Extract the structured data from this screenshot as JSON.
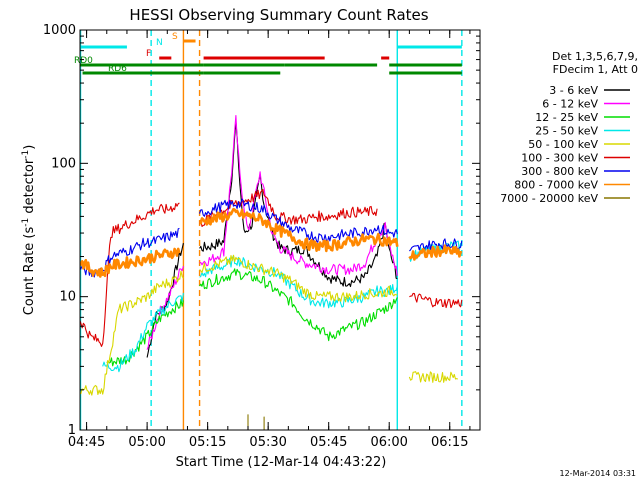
{
  "chart_data": {
    "type": "line",
    "title": "HESSI Observing Summary Count Rates",
    "xlabel": "Start Time (12-Mar-14 04:43:22)",
    "ylabel": "Count Rate (s⁻¹ detector⁻¹)",
    "ylabel_parts": [
      "Count Rate (s",
      "-1",
      " detector",
      "-1",
      ")"
    ],
    "yscale": "log",
    "ylim": [
      1,
      1000
    ],
    "xlim": [
      "04:43:22",
      "06:22:30"
    ],
    "x_tick_labels": [
      "04:45",
      "05:00",
      "05:15",
      "05:30",
      "05:45",
      "06:00",
      "06:15"
    ],
    "y_tick_labels": [
      "1",
      "10",
      "100",
      "1000"
    ],
    "legend_placement": "right",
    "legend_header": [
      "Det 1,3,5,6,7,9,",
      "FDecim 1, Att 0"
    ],
    "timestamp": "12-Mar-2014 03:31",
    "series": [
      {
        "name": "3 - 6 keV",
        "color": "#000000",
        "points": [
          [
            "05:00",
            3.5
          ],
          [
            "05:02",
            7
          ],
          [
            "05:05",
            9
          ],
          [
            "05:08",
            20
          ],
          [
            "05:09",
            25
          ],
          [
            "05:13",
            23
          ],
          [
            "05:16",
            24
          ],
          [
            "05:19",
            26
          ],
          [
            "05:21",
            80
          ],
          [
            "05:22",
            200
          ],
          [
            "05:23",
            70
          ],
          [
            "05:24",
            30
          ],
          [
            "05:26",
            35
          ],
          [
            "05:28",
            80
          ],
          [
            "05:29",
            50
          ],
          [
            "05:31",
            30
          ],
          [
            "05:33",
            23
          ],
          [
            "05:36",
            22
          ],
          [
            "05:39",
            23
          ],
          [
            "05:42",
            18
          ],
          [
            "05:45",
            14
          ],
          [
            "05:48",
            13
          ],
          [
            "05:51",
            13
          ],
          [
            "05:54",
            14
          ],
          [
            "05:57",
            20
          ],
          [
            "05:59",
            35
          ],
          [
            "06:00",
            22
          ],
          [
            "06:02",
            14
          ]
        ]
      },
      {
        "name": "6 - 12 keV",
        "color": "#ff00ff",
        "points": [
          [
            "05:00",
            4
          ],
          [
            "05:03",
            7.5
          ],
          [
            "05:06",
            11
          ],
          [
            "05:08",
            15
          ],
          [
            "05:09",
            18
          ],
          [
            "05:13",
            18
          ],
          [
            "05:16",
            19
          ],
          [
            "05:19",
            22
          ],
          [
            "05:21",
            90
          ],
          [
            "05:22",
            210
          ],
          [
            "05:23",
            80
          ],
          [
            "05:25",
            30
          ],
          [
            "05:27",
            60
          ],
          [
            "05:28",
            85
          ],
          [
            "05:29",
            60
          ],
          [
            "05:31",
            30
          ],
          [
            "05:33",
            23
          ],
          [
            "05:36",
            20
          ],
          [
            "05:39",
            18
          ],
          [
            "05:42",
            17
          ],
          [
            "05:45",
            16
          ],
          [
            "05:48",
            16
          ],
          [
            "05:51",
            16
          ],
          [
            "05:54",
            18
          ],
          [
            "05:57",
            28
          ],
          [
            "05:59",
            34
          ],
          [
            "06:00",
            24
          ],
          [
            "06:02",
            15
          ]
        ]
      },
      {
        "name": "12 - 25 keV",
        "color": "#00dd00",
        "points": [
          [
            "04:50",
            3.2
          ],
          [
            "04:55",
            3.4
          ],
          [
            "05:00",
            5
          ],
          [
            "05:03",
            6.8
          ],
          [
            "05:06",
            8
          ],
          [
            "05:09",
            9
          ],
          [
            "05:13",
            12
          ],
          [
            "05:16",
            13
          ],
          [
            "05:19",
            14
          ],
          [
            "05:22",
            15
          ],
          [
            "05:26",
            14
          ],
          [
            "05:29",
            13
          ],
          [
            "05:32",
            11
          ],
          [
            "05:36",
            9
          ],
          [
            "05:39",
            7
          ],
          [
            "05:42",
            6
          ],
          [
            "05:45",
            5
          ],
          [
            "05:48",
            5.5
          ],
          [
            "05:51",
            6
          ],
          [
            "05:54",
            6.5
          ],
          [
            "05:57",
            7.5
          ],
          [
            "06:00",
            8.5
          ],
          [
            "06:02",
            10
          ]
        ]
      },
      {
        "name": "25 - 50 keV",
        "color": "#00e8e8",
        "points": [
          [
            "04:49",
            3
          ],
          [
            "04:53",
            3
          ],
          [
            "04:57",
            4
          ],
          [
            "05:00",
            6
          ],
          [
            "05:03",
            7.5
          ],
          [
            "05:06",
            9
          ],
          [
            "05:09",
            10
          ],
          [
            "05:13",
            14
          ],
          [
            "05:16",
            16
          ],
          [
            "05:19",
            17
          ],
          [
            "05:22",
            19
          ],
          [
            "05:26",
            17
          ],
          [
            "05:29",
            16
          ],
          [
            "05:32",
            15
          ],
          [
            "05:36",
            12
          ],
          [
            "05:39",
            10
          ],
          [
            "05:42",
            9
          ],
          [
            "05:45",
            9
          ],
          [
            "05:48",
            9
          ],
          [
            "05:51",
            9.5
          ],
          [
            "05:54",
            10
          ],
          [
            "05:57",
            11
          ],
          [
            "06:00",
            11
          ],
          [
            "06:02",
            12
          ],
          [
            "06:05",
            20
          ],
          [
            "06:09",
            22
          ],
          [
            "06:12",
            23
          ],
          [
            "06:15",
            24
          ],
          [
            "06:18",
            24
          ]
        ]
      },
      {
        "name": "50 - 100 keV",
        "color": "#d8d800",
        "points": [
          [
            "04:43",
            2
          ],
          [
            "04:46",
            2
          ],
          [
            "04:49",
            2
          ],
          [
            "04:53",
            8
          ],
          [
            "04:57",
            9
          ],
          [
            "05:00",
            10
          ],
          [
            "05:03",
            12
          ],
          [
            "05:06",
            13
          ],
          [
            "05:09",
            15
          ],
          [
            "05:13",
            16
          ],
          [
            "05:16",
            17
          ],
          [
            "05:19",
            18
          ],
          [
            "05:22",
            19
          ],
          [
            "05:26",
            17
          ],
          [
            "05:29",
            16
          ],
          [
            "05:32",
            15
          ],
          [
            "05:36",
            13
          ],
          [
            "05:39",
            11
          ],
          [
            "05:42",
            10
          ],
          [
            "05:45",
            10
          ],
          [
            "05:48",
            10
          ],
          [
            "05:51",
            10
          ],
          [
            "05:54",
            10.5
          ],
          [
            "05:57",
            10.5
          ],
          [
            "06:00",
            11
          ],
          [
            "06:02",
            11
          ],
          [
            "06:05",
            2.5
          ],
          [
            "06:09",
            2.5
          ],
          [
            "06:12",
            2.5
          ],
          [
            "06:15",
            2.5
          ],
          [
            "06:17",
            2.5
          ]
        ]
      },
      {
        "name": "100 - 300 keV",
        "color": "#dd0000",
        "points": [
          [
            "04:43",
            7
          ],
          [
            "04:46",
            5
          ],
          [
            "04:49",
            4.5
          ],
          [
            "04:51",
            30
          ],
          [
            "04:55",
            35
          ],
          [
            "04:59",
            40
          ],
          [
            "05:02",
            45
          ],
          [
            "05:05",
            45
          ],
          [
            "05:08",
            50
          ],
          [
            "05:13",
            35
          ],
          [
            "05:16",
            40
          ],
          [
            "05:19",
            45
          ],
          [
            "05:22",
            50
          ],
          [
            "05:26",
            55
          ],
          [
            "05:29",
            60
          ],
          [
            "05:32",
            40
          ],
          [
            "05:36",
            38
          ],
          [
            "05:39",
            38
          ],
          [
            "05:42",
            40
          ],
          [
            "05:45",
            40
          ],
          [
            "05:48",
            42
          ],
          [
            "05:51",
            43
          ],
          [
            "05:54",
            43
          ],
          [
            "05:57",
            44
          ],
          [
            "06:05",
            10
          ],
          [
            "06:09",
            9.5
          ],
          [
            "06:12",
            9
          ],
          [
            "06:15",
            9
          ],
          [
            "06:18",
            9
          ]
        ]
      },
      {
        "name": "300 - 800 keV",
        "color": "#0000ee",
        "points": [
          [
            "04:43",
            17
          ],
          [
            "04:46",
            15
          ],
          [
            "04:49",
            16
          ],
          [
            "04:51",
            20
          ],
          [
            "04:55",
            22
          ],
          [
            "04:59",
            25
          ],
          [
            "05:02",
            26
          ],
          [
            "05:05",
            28
          ],
          [
            "05:08",
            30
          ],
          [
            "05:13",
            42
          ],
          [
            "05:16",
            45
          ],
          [
            "05:19",
            48
          ],
          [
            "05:22",
            50
          ],
          [
            "05:26",
            48
          ],
          [
            "05:29",
            45
          ],
          [
            "05:32",
            38
          ],
          [
            "05:36",
            32
          ],
          [
            "05:39",
            30
          ],
          [
            "05:42",
            28
          ],
          [
            "05:45",
            28
          ],
          [
            "05:48",
            29
          ],
          [
            "05:51",
            30
          ],
          [
            "05:54",
            31
          ],
          [
            "05:57",
            33
          ],
          [
            "06:00",
            30
          ],
          [
            "06:02",
            30
          ],
          [
            "06:05",
            22
          ],
          [
            "06:09",
            24
          ],
          [
            "06:12",
            25
          ],
          [
            "06:15",
            25
          ],
          [
            "06:18",
            25
          ]
        ]
      },
      {
        "name": "800 - 7000 keV",
        "color": "#ff8800",
        "points": [
          [
            "04:43",
            19
          ],
          [
            "04:46",
            16
          ],
          [
            "04:49",
            15
          ],
          [
            "04:51",
            17
          ],
          [
            "04:55",
            18
          ],
          [
            "04:59",
            19
          ],
          [
            "05:02",
            20
          ],
          [
            "05:05",
            21
          ],
          [
            "05:08",
            22
          ],
          [
            "05:13",
            36
          ],
          [
            "05:16",
            38
          ],
          [
            "05:19",
            40
          ],
          [
            "05:22",
            42
          ],
          [
            "05:26",
            40
          ],
          [
            "05:29",
            37
          ],
          [
            "05:32",
            32
          ],
          [
            "05:36",
            28
          ],
          [
            "05:39",
            25
          ],
          [
            "05:42",
            24
          ],
          [
            "05:45",
            24
          ],
          [
            "05:48",
            25
          ],
          [
            "05:51",
            26
          ],
          [
            "05:54",
            27
          ],
          [
            "05:57",
            27
          ],
          [
            "06:00",
            26
          ],
          [
            "06:02",
            25
          ],
          [
            "06:05",
            20
          ],
          [
            "06:09",
            21
          ],
          [
            "06:12",
            22
          ],
          [
            "06:15",
            22
          ],
          [
            "06:18",
            21
          ]
        ]
      },
      {
        "name": "7000 - 20000 keV",
        "color": "#887700",
        "points": [
          [
            "04:43",
            1
          ],
          [
            "05:25",
            1
          ],
          [
            "05:25",
            1.3
          ],
          [
            "05:25",
            1
          ],
          [
            "05:29",
            1
          ],
          [
            "05:29",
            1.25
          ],
          [
            "05:29",
            1
          ],
          [
            "06:18",
            1
          ]
        ]
      }
    ],
    "flags": [
      {
        "label": "N",
        "color": "#00e8e8",
        "segments": [
          [
            "04:43",
            "04:55"
          ],
          [
            "06:02",
            "06:18"
          ]
        ]
      },
      {
        "label": "S",
        "color": "#ff8800",
        "segments": [
          [
            "05:09",
            "05:12"
          ]
        ]
      },
      {
        "label": "F",
        "color": "#dd0000",
        "segments": [
          [
            "05:03",
            "05:06"
          ],
          [
            "05:14",
            "05:44"
          ],
          [
            "05:58",
            "06:00"
          ]
        ]
      },
      {
        "label": "RD0",
        "color": "#008800",
        "segments": [
          [
            "04:43",
            "05:14"
          ],
          [
            "05:14",
            "05:34"
          ],
          [
            "05:34",
            "05:57"
          ],
          [
            "06:00",
            "06:18"
          ]
        ]
      },
      {
        "label": "RD6",
        "color": "#008800",
        "segments": [
          [
            "04:44",
            "05:14"
          ],
          [
            "05:14",
            "05:33"
          ],
          [
            "06:00",
            "06:18"
          ]
        ]
      }
    ],
    "vertical_lines": [
      {
        "time": "04:43:30",
        "color": "#00e8e8",
        "style": "solid"
      },
      {
        "time": "05:01",
        "color": "#00e8e8",
        "style": "dashed"
      },
      {
        "time": "05:09",
        "color": "#ff8800",
        "style": "solid"
      },
      {
        "time": "05:13",
        "color": "#ff8800",
        "style": "dashed"
      },
      {
        "time": "06:02",
        "color": "#00e8e8",
        "style": "solid"
      },
      {
        "time": "06:18",
        "color": "#00e8e8",
        "style": "dashed"
      }
    ]
  }
}
